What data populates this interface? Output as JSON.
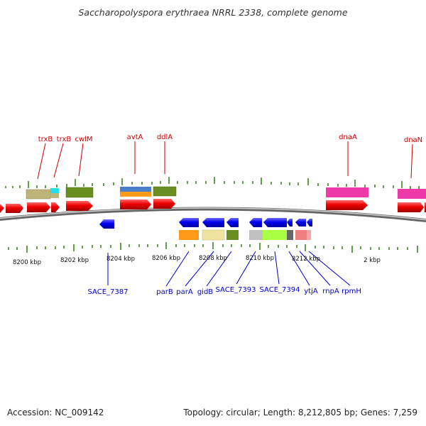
{
  "title": "Saccharopolyspora erythraea NRRL 2338, complete genome",
  "colors": {
    "gene_label": "#cc0000",
    "lower_label": "#0000cc",
    "tick": "#2e7d12",
    "backbone": "#888888",
    "forward_cds": "#ee0000",
    "reverse_cds": "#0000ee"
  },
  "scale_labels": [
    "8200 kbp",
    "8202 kbp",
    "8204 kbp",
    "8206 kbp",
    "8208 kbp",
    "8210 kbp",
    "8212 kbp",
    "2 kbp"
  ],
  "upper_labels": [
    "trxB",
    "trxB",
    "cwlM",
    "avtA",
    "ddlA",
    "dnaA",
    "dnaN"
  ],
  "lower_labels": [
    "SACE_7387",
    "parB",
    "parA",
    "gidB",
    "SACE_7393",
    "SACE_7394",
    "ytjA",
    "rnpA",
    "rpmH"
  ],
  "footer": {
    "accession": "Accession: NC_009142",
    "summary": "Topology: circular; Length: 8,212,805 bp; Genes: 7,259"
  }
}
